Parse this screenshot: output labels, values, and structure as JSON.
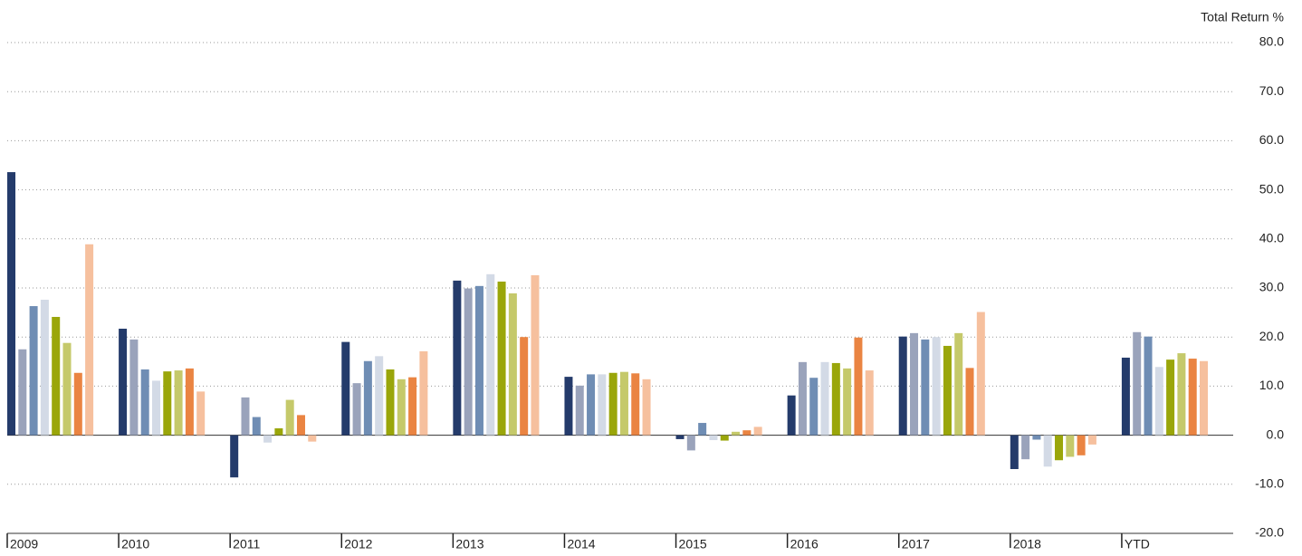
{
  "chart_data": {
    "type": "bar",
    "y_axis_label": "Total Return %",
    "categories": [
      "2009",
      "2010",
      "2011",
      "2012",
      "2013",
      "2014",
      "2015",
      "2016",
      "2017",
      "2018",
      "YTD"
    ],
    "series": [
      {
        "color": "#243b6b",
        "values": [
          53.6,
          21.7,
          -8.6,
          19.0,
          31.5,
          11.9,
          -0.8,
          8.1,
          20.1,
          -6.9,
          15.8
        ]
      },
      {
        "color": "#9aa3bb",
        "values": [
          17.5,
          19.5,
          7.7,
          10.6,
          29.9,
          10.1,
          -3.1,
          14.9,
          20.8,
          -4.9,
          21.0
        ]
      },
      {
        "color": "#6f8db4",
        "values": [
          26.3,
          13.4,
          3.7,
          15.1,
          30.4,
          12.4,
          2.5,
          11.7,
          19.5,
          -0.9,
          20.1
        ]
      },
      {
        "color": "#d3dae6",
        "values": [
          27.6,
          11.1,
          -1.5,
          16.1,
          32.8,
          12.4,
          -1.0,
          14.9,
          20.0,
          -6.4,
          13.9
        ]
      },
      {
        "color": "#9aa60a",
        "values": [
          24.1,
          13.0,
          1.4,
          13.4,
          31.3,
          12.7,
          -1.1,
          14.7,
          18.2,
          -5.1,
          15.4
        ]
      },
      {
        "color": "#c5c96a",
        "values": [
          18.8,
          13.2,
          7.2,
          11.4,
          28.9,
          12.9,
          0.7,
          13.6,
          20.8,
          -4.4,
          16.7
        ]
      },
      {
        "color": "#ea8442",
        "values": [
          12.7,
          13.6,
          4.1,
          11.8,
          20.0,
          12.6,
          1.0,
          19.9,
          13.7,
          -4.1,
          15.6
        ]
      },
      {
        "color": "#f6c09e",
        "values": [
          38.9,
          8.9,
          -1.3,
          17.1,
          32.6,
          11.4,
          1.7,
          13.2,
          25.1,
          -1.9,
          15.1
        ]
      }
    ],
    "ylim": [
      -20,
      80
    ],
    "yticks": [
      {
        "value": -20,
        "label": "-20.0"
      },
      {
        "value": -10,
        "label": "-10.0"
      },
      {
        "value": 0,
        "label": "0.0"
      },
      {
        "value": 10,
        "label": "10.0"
      },
      {
        "value": 20,
        "label": "20.0"
      },
      {
        "value": 30,
        "label": "30.0"
      },
      {
        "value": 40,
        "label": "40.0"
      },
      {
        "value": 50,
        "label": "50.0"
      },
      {
        "value": 60,
        "label": "60.0"
      },
      {
        "value": 70,
        "label": "70.0"
      },
      {
        "value": 80,
        "label": "80.0"
      }
    ],
    "grid": true
  }
}
